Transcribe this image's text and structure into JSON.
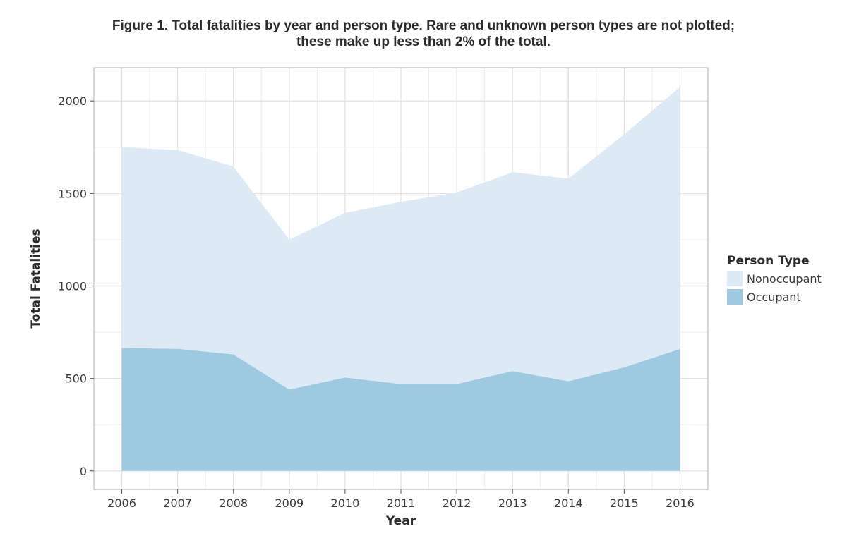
{
  "chart_data": {
    "type": "area",
    "stacked": true,
    "title": "Figure 1. Total fatalities by year and person type. Rare and unknown person types are not plotted;",
    "subtitle": "these make up less than 2% of the total.",
    "xlabel": "Year",
    "ylabel": "Total Fatalities",
    "x": [
      "2006",
      "2007",
      "2008",
      "2009",
      "2010",
      "2011",
      "2012",
      "2013",
      "2014",
      "2015",
      "2016"
    ],
    "xlim": [
      2005.5,
      2016.5
    ],
    "ylim": [
      -100,
      2180
    ],
    "yticks": [
      "0",
      "500",
      "1000",
      "1500",
      "2000"
    ],
    "grid": true,
    "legend": {
      "title": "Person Type",
      "position": "right",
      "entries": [
        {
          "name": "Nonoccupant",
          "color": "#dde9f5"
        },
        {
          "name": "Occupant",
          "color": "#9ecae1"
        }
      ]
    },
    "series": [
      {
        "name": "Occupant",
        "color": "#9ecae1",
        "values": [
          665,
          660,
          630,
          440,
          505,
          470,
          470,
          540,
          485,
          560,
          660
        ]
      },
      {
        "name": "Nonoccupant",
        "color": "#dde9f5",
        "values": [
          1085,
          1075,
          1015,
          810,
          890,
          985,
          1035,
          1075,
          1095,
          1260,
          1415
        ]
      }
    ]
  }
}
